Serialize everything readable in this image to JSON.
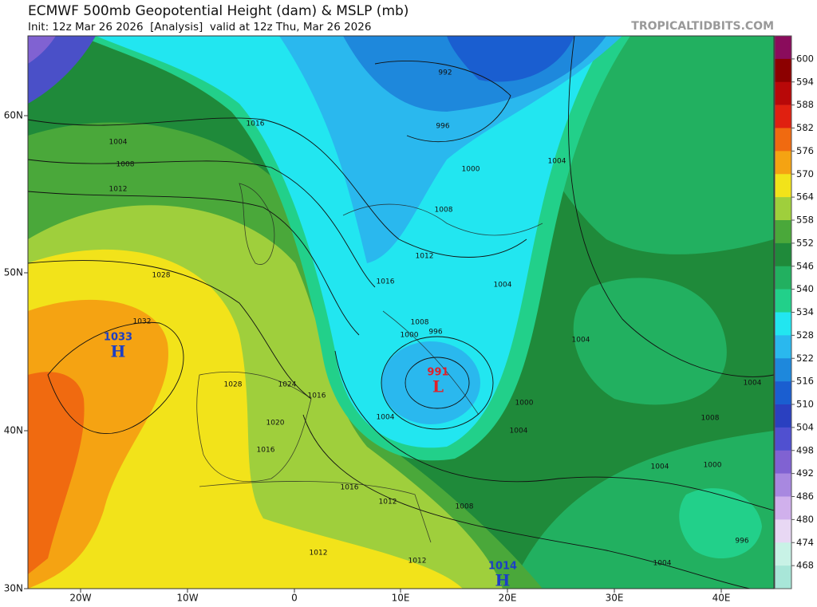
{
  "header": {
    "title": "ECMWF 500mb Geopotential Height (dam) & MSLP (mb)",
    "subtitle": "Init: 12z Mar 26 2026  [Analysis]  valid at 12z Thu, Mar 26 2026",
    "credit": "TROPICALTIDBITS.COM"
  },
  "map": {
    "lat_labels": [
      "60N",
      "50N",
      "40N",
      "30N"
    ],
    "lon_labels": [
      "20W",
      "10W",
      "0",
      "10E",
      "20E",
      "30E",
      "40E"
    ],
    "centers": [
      {
        "label": "1033",
        "symbol": "H",
        "color": "#1c3fc4"
      },
      {
        "label": "991",
        "symbol": "L",
        "color": "#e0202a"
      },
      {
        "label": "1014",
        "symbol": "H",
        "color": "#1c3fc4"
      }
    ],
    "isobar_labels": [
      "1004",
      "1008",
      "1012",
      "1016",
      "1028",
      "1032",
      "992",
      "996",
      "1000",
      "1008",
      "1012",
      "1016",
      "1004",
      "1008",
      "996",
      "1000",
      "1004",
      "1028",
      "1024",
      "1016",
      "1020",
      "1016",
      "1004",
      "1000",
      "1004",
      "1016",
      "1012",
      "1008",
      "1012",
      "1012",
      "1004",
      "1004",
      "1008",
      "1004",
      "1000",
      "996",
      "1004"
    ]
  },
  "colorbar": {
    "levels": [
      600,
      594,
      588,
      582,
      576,
      570,
      564,
      558,
      552,
      546,
      540,
      534,
      528,
      522,
      516,
      510,
      504,
      498,
      492,
      486,
      480,
      474,
      468
    ],
    "colors": [
      "#8a0c5c",
      "#8c0000",
      "#b80808",
      "#e02010",
      "#f06a10",
      "#f5a312",
      "#f2e31a",
      "#9fcf3c",
      "#4aa83a",
      "#1f8a3a",
      "#22b060",
      "#22d08a",
      "#22e6f0",
      "#2ab8ee",
      "#1e88dc",
      "#1a5ed0",
      "#2a40c0",
      "#5050d0",
      "#8062d2",
      "#a888e0",
      "#d0b0ec",
      "#e8d8f4",
      "#c8f2e6",
      "#a8e6d8"
    ]
  }
}
